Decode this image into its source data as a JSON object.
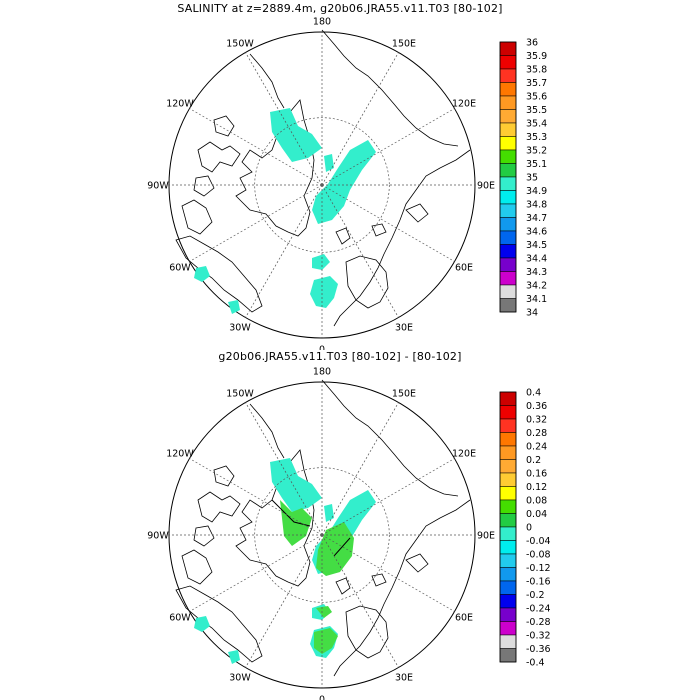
{
  "panels": [
    {
      "title": "SALINITY at z=2889.4m, g20b06.JRA55.v11.T03 [80-102]",
      "longitude_labels": [
        "180",
        "150E",
        "120E",
        "90E",
        "60E",
        "30E",
        "0",
        "30W",
        "60W",
        "90W",
        "120W",
        "150W"
      ],
      "colorbar": {
        "labels": [
          "36",
          "35.9",
          "35.8",
          "35.7",
          "35.6",
          "35.5",
          "35.4",
          "35.3",
          "35.2",
          "35.1",
          "35",
          "34.9",
          "34.8",
          "34.7",
          "34.6",
          "34.5",
          "34.4",
          "34.3",
          "34.2",
          "34.1",
          "34"
        ],
        "colors": [
          "#cc0000",
          "#ee0000",
          "#ff3322",
          "#ff7700",
          "#ff9922",
          "#ffaa33",
          "#ffcc33",
          "#ffff00",
          "#44dd00",
          "#22cc44",
          "#33eecc",
          "#00eeee",
          "#22ccee",
          "#1199ee",
          "#0066ee",
          "#0000ee",
          "#7700cc",
          "#cc00cc",
          "#dddddd",
          "#777777"
        ]
      },
      "fill_color": "#33eecc"
    },
    {
      "title": "g20b06.JRA55.v11.T03 [80-102] - [80-102]",
      "longitude_labels": [
        "180",
        "150E",
        "120E",
        "90E",
        "60E",
        "30E",
        "0",
        "30W",
        "60W",
        "90W",
        "120W",
        "150W"
      ],
      "colorbar": {
        "labels": [
          "0.4",
          "0.36",
          "0.32",
          "0.28",
          "0.24",
          "0.2",
          "0.16",
          "0.12",
          "0.08",
          "0.04",
          "0",
          "-0.04",
          "-0.08",
          "-0.12",
          "-0.16",
          "-0.2",
          "-0.24",
          "-0.28",
          "-0.32",
          "-0.36",
          "-0.4"
        ],
        "colors": [
          "#cc0000",
          "#ee0000",
          "#ff3322",
          "#ff7700",
          "#ff9922",
          "#ffaa33",
          "#ffcc33",
          "#ffff00",
          "#44dd00",
          "#22cc44",
          "#33eecc",
          "#00eeee",
          "#22ccee",
          "#1199ee",
          "#0066ee",
          "#0000ee",
          "#7700cc",
          "#cc00cc",
          "#dddddd",
          "#777777"
        ]
      },
      "fill_color": "#33eecc",
      "secondary_fill_color": "#44dd44"
    }
  ]
}
